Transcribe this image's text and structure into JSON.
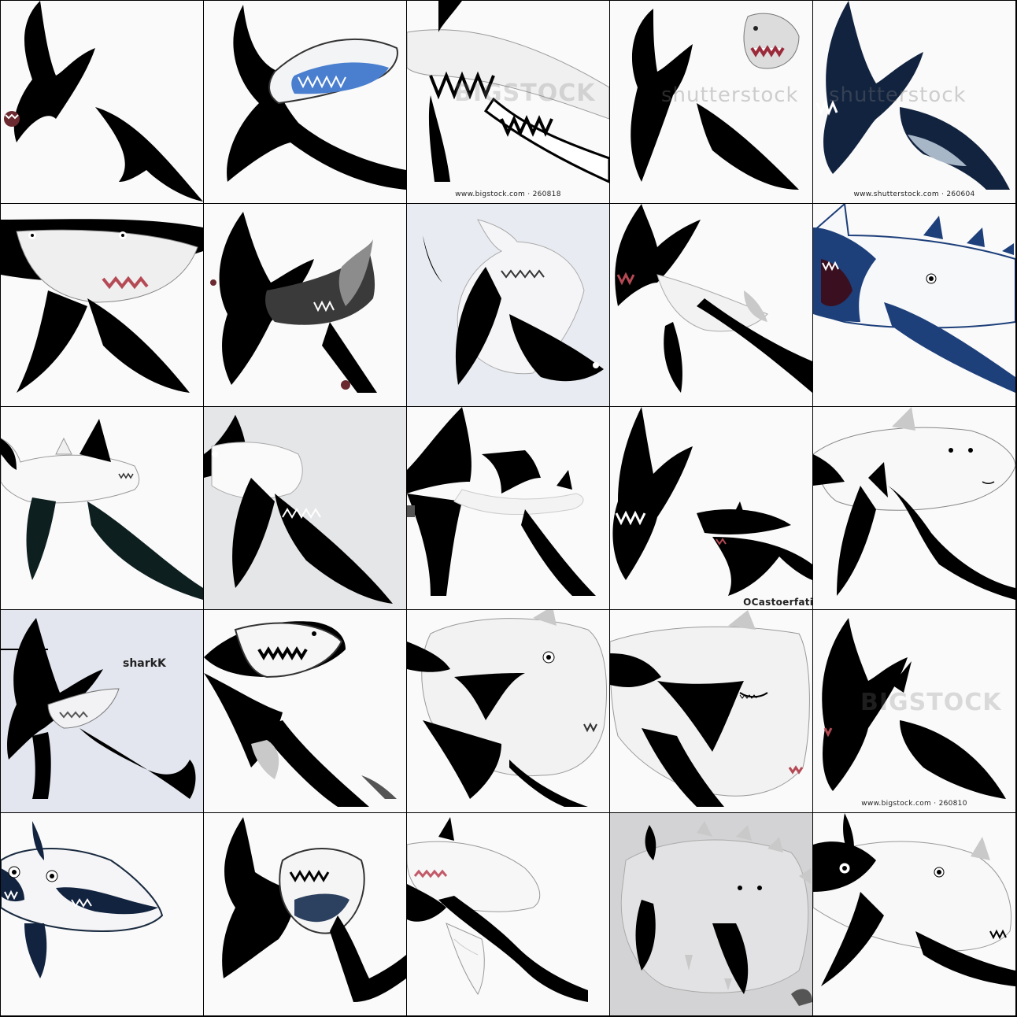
{
  "grid": {
    "rows": 5,
    "cols": 5
  },
  "colors": {
    "background": "#fafafa",
    "shark_dark": "#000000",
    "shark_navy": "#12233f",
    "shark_blue": "#1d3f7a",
    "belly": "#ffffff",
    "grey_fin": "#c9c9c9",
    "mouth_red": "#b54a55"
  },
  "tiles": [
    {
      "subject": "shark-silhouette-tile",
      "caption": "",
      "watermark": ""
    },
    {
      "subject": "shark-blue-mouth-tile",
      "caption": "",
      "watermark": ""
    },
    {
      "subject": "shark-open-jaws-tile",
      "caption": "www.bigstock.com · 260818",
      "watermark": "BIGSTOCK"
    },
    {
      "subject": "shark-grey-head-tile",
      "caption": "",
      "watermark": "shutterstock"
    },
    {
      "subject": "shark-navy-tile",
      "caption": "www.shutterstock.com · 260604",
      "watermark": "shutterstock"
    },
    {
      "subject": "shark-grin-tile",
      "caption": "",
      "watermark": ""
    },
    {
      "subject": "shark-grey-fin-tile",
      "caption": "",
      "watermark": ""
    },
    {
      "subject": "shark-pale-tile",
      "caption": "",
      "watermark": ""
    },
    {
      "subject": "shark-red-mouth-tile",
      "caption": "",
      "watermark": ""
    },
    {
      "subject": "shark-blue-tile",
      "caption": "",
      "watermark": ""
    },
    {
      "subject": "shark-white-body-tile",
      "caption": "",
      "watermark": ""
    },
    {
      "subject": "shark-grey-bg-tile",
      "caption": "",
      "watermark": ""
    },
    {
      "subject": "shark-split-tile",
      "caption": "",
      "watermark": ""
    },
    {
      "subject": "shark-two-sharks-tile",
      "caption": "OCastoerfatisom",
      "watermark": ""
    },
    {
      "subject": "shark-white-tile",
      "caption": "",
      "watermark": ""
    },
    {
      "subject": "shark-text-tile",
      "caption": "sharkK",
      "watermark": ""
    },
    {
      "subject": "shark-teeth-tile",
      "caption": "",
      "watermark": ""
    },
    {
      "subject": "shark-closeup-tile",
      "caption": "",
      "watermark": ""
    },
    {
      "subject": "shark-wide-tile",
      "caption": "",
      "watermark": ""
    },
    {
      "subject": "shark-bigstock-tile",
      "caption": "www.bigstock.com · 260810",
      "watermark": "BIGSTOCK"
    },
    {
      "subject": "shark-navy-eyes-tile",
      "caption": "",
      "watermark": ""
    },
    {
      "subject": "shark-jaws-tile",
      "caption": "",
      "watermark": ""
    },
    {
      "subject": "shark-pink-gums-tile",
      "caption": "",
      "watermark": ""
    },
    {
      "subject": "shark-grey-blob-tile",
      "caption": "",
      "watermark": ""
    },
    {
      "subject": "shark-eyes-tile",
      "caption": "",
      "watermark": ""
    }
  ]
}
